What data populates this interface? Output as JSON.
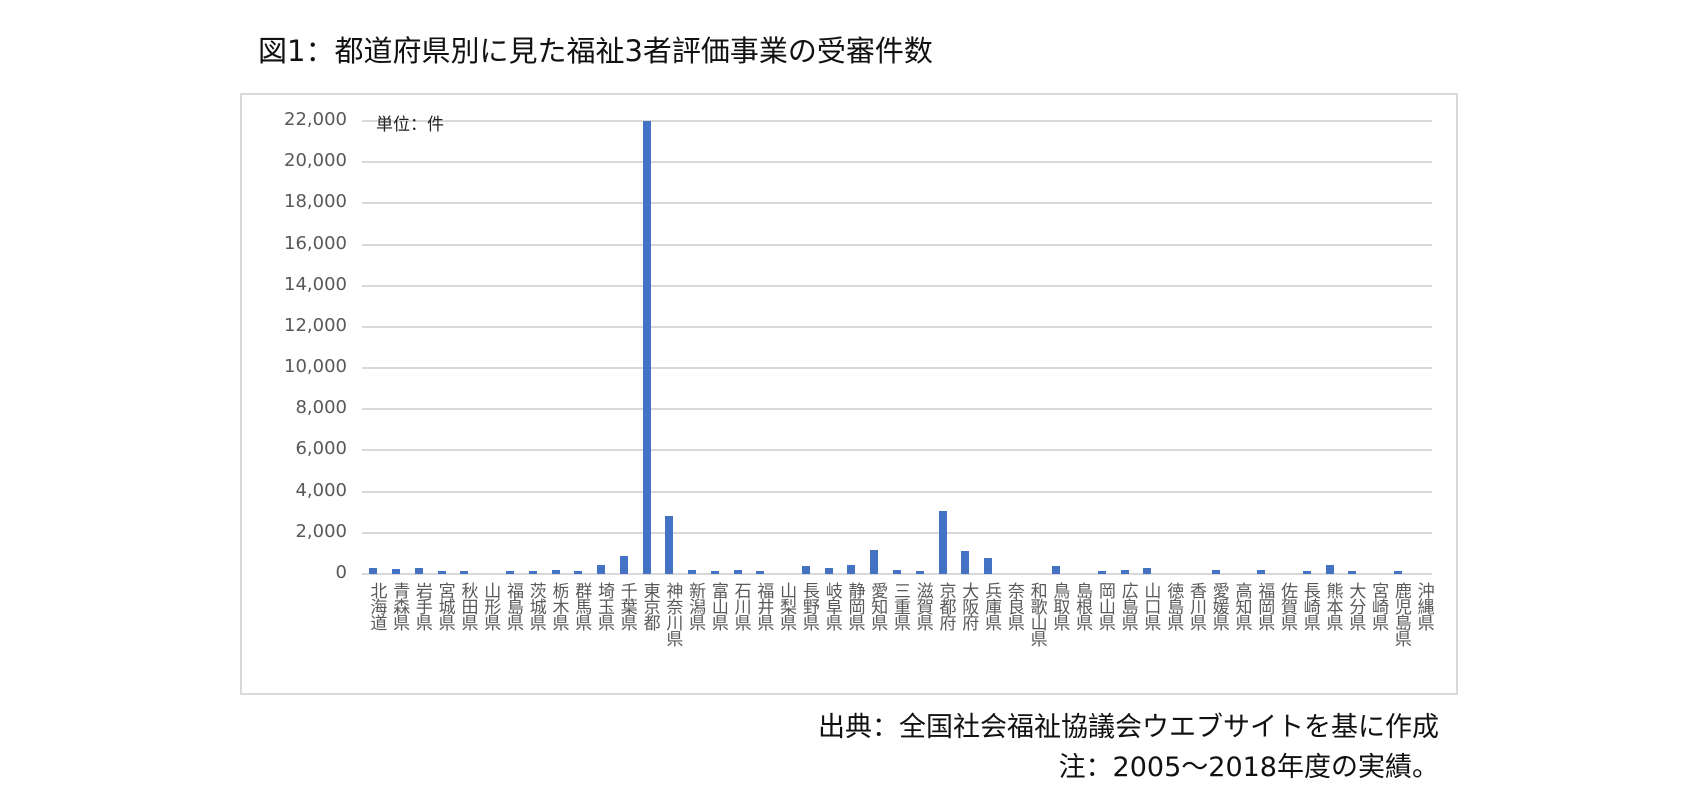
{
  "title": "図1：都道府県別に見た福祉3者評価事業の受審件数",
  "unit_label": "単位：件",
  "source_note": "出典：全国社会福祉協議会ウエブサイトを基に作成",
  "period_note": "注：2005～2018年度の実績。",
  "colors": {
    "bar": "#4472c4",
    "grid": "#d9d9d9",
    "tick_text": "#595959"
  },
  "y_ticks": [
    "22,000",
    "20,000",
    "18,000",
    "16,000",
    "14,000",
    "12,000",
    "10,000",
    "8,000",
    "6,000",
    "4,000",
    "2,000",
    "0"
  ],
  "chart_data": {
    "type": "bar",
    "title": "図1：都道府県別に見た福祉3者評価事業の受審件数",
    "xlabel": "",
    "ylabel": "単位：件",
    "ylim": [
      0,
      22000
    ],
    "y_tick_step": 2000,
    "grid": true,
    "legend": "none",
    "categories": [
      "北海道",
      "青森県",
      "岩手県",
      "宮城県",
      "秋田県",
      "山形県",
      "福島県",
      "茨城県",
      "栃木県",
      "群馬県",
      "埼玉県",
      "千葉県",
      "東京都",
      "神奈川県",
      "新潟県",
      "富山県",
      "石川県",
      "福井県",
      "山梨県",
      "長野県",
      "岐阜県",
      "静岡県",
      "愛知県",
      "三重県",
      "滋賀県",
      "京都府",
      "大阪府",
      "兵庫県",
      "奈良県",
      "和歌山県",
      "鳥取県",
      "島根県",
      "岡山県",
      "広島県",
      "山口県",
      "徳島県",
      "香川県",
      "愛媛県",
      "高知県",
      "福岡県",
      "佐賀県",
      "長崎県",
      "熊本県",
      "大分県",
      "宮崎県",
      "鹿児島県",
      "沖縄県"
    ],
    "values": [
      300,
      250,
      300,
      150,
      100,
      0,
      100,
      100,
      200,
      100,
      450,
      850,
      22000,
      2800,
      200,
      100,
      200,
      100,
      0,
      400,
      300,
      450,
      1150,
      200,
      100,
      3050,
      1100,
      800,
      0,
      0,
      400,
      0,
      100,
      200,
      300,
      0,
      0,
      200,
      0,
      200,
      0,
      150,
      450,
      150,
      0,
      150,
      0
    ],
    "annotations": [
      "出典：全国社会福祉協議会ウエブサイトを基に作成",
      "注：2005～2018年度の実績。"
    ]
  }
}
